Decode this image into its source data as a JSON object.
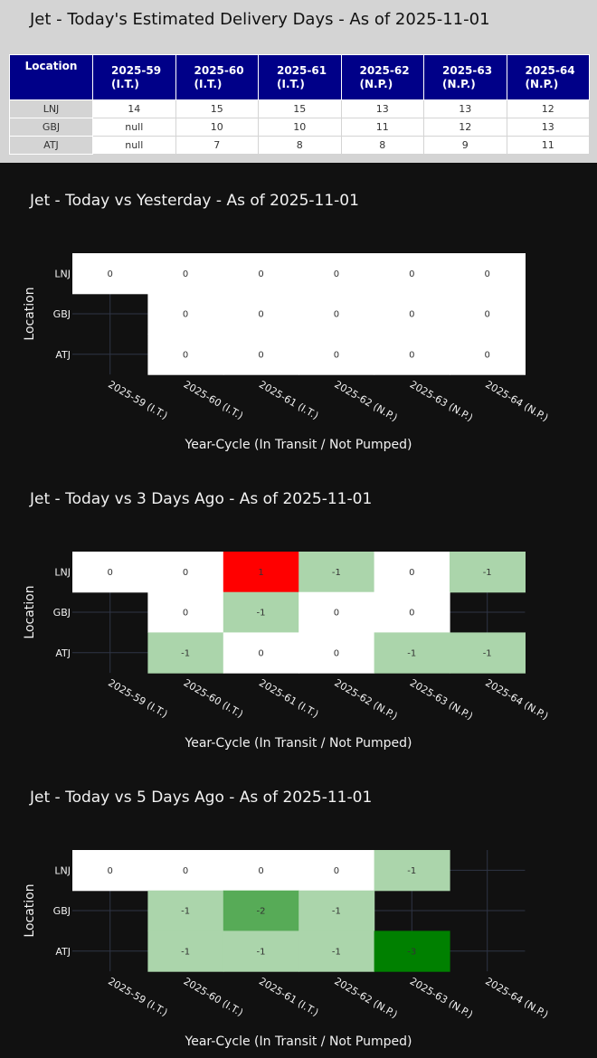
{
  "table": {
    "title": "Jet - Today's Estimated Delivery Days - As of 2025-11-01",
    "header_location": "Location",
    "columns": [
      [
        "2025-59",
        "(I.T.)"
      ],
      [
        "2025-60",
        "(I.T.)"
      ],
      [
        "2025-61",
        "(I.T.)"
      ],
      [
        "2025-62",
        "(N.P.)"
      ],
      [
        "2025-63",
        "(N.P.)"
      ],
      [
        "2025-64",
        "(N.P.)"
      ]
    ],
    "rows": [
      {
        "location": "LNJ",
        "values": [
          "14",
          "15",
          "15",
          "13",
          "13",
          "12"
        ]
      },
      {
        "location": "GBJ",
        "values": [
          "null",
          "10",
          "10",
          "11",
          "12",
          "13"
        ]
      },
      {
        "location": "ATJ",
        "values": [
          "null",
          "7",
          "8",
          "8",
          "9",
          "11"
        ]
      }
    ],
    "colors": {
      "header_bg": "#000088",
      "header_text": "#ffffff"
    }
  },
  "chart_data": [
    {
      "type": "heatmap",
      "title": "Jet - Today vs Yesterday - As of 2025-11-01",
      "xlabel": "Year-Cycle (In Transit / Not Pumped)",
      "ylabel": "Location",
      "x": [
        "2025-59 (I.T.)",
        "2025-60 (I.T.)",
        "2025-61 (I.T.)",
        "2025-62 (N.P.)",
        "2025-63 (N.P.)",
        "2025-64 (N.P.)"
      ],
      "y": [
        "LNJ",
        "GBJ",
        "ATJ"
      ],
      "z": [
        [
          0,
          0,
          0,
          0,
          0,
          0
        ],
        [
          null,
          0,
          0,
          0,
          0,
          0
        ],
        [
          null,
          0,
          0,
          0,
          0,
          0
        ]
      ]
    },
    {
      "type": "heatmap",
      "title": "Jet - Today vs 3 Days Ago - As of 2025-11-01",
      "xlabel": "Year-Cycle (In Transit / Not Pumped)",
      "ylabel": "Location",
      "x": [
        "2025-59 (I.T.)",
        "2025-60 (I.T.)",
        "2025-61 (I.T.)",
        "2025-62 (N.P.)",
        "2025-63 (N.P.)",
        "2025-64 (N.P.)"
      ],
      "y": [
        "LNJ",
        "GBJ",
        "ATJ"
      ],
      "z": [
        [
          0,
          0,
          1,
          -1,
          0,
          -1
        ],
        [
          null,
          0,
          -1,
          0,
          0,
          null
        ],
        [
          null,
          -1,
          0,
          0,
          -1,
          -1
        ]
      ]
    },
    {
      "type": "heatmap",
      "title": "Jet - Today vs 5 Days Ago - As of 2025-11-01",
      "xlabel": "Year-Cycle (In Transit / Not Pumped)",
      "ylabel": "Location",
      "x": [
        "2025-59 (I.T.)",
        "2025-60 (I.T.)",
        "2025-61 (I.T.)",
        "2025-62 (N.P.)",
        "2025-63 (N.P.)",
        "2025-64 (N.P.)"
      ],
      "y": [
        "LNJ",
        "GBJ",
        "ATJ"
      ],
      "z": [
        [
          0,
          0,
          0,
          0,
          -1,
          null
        ],
        [
          null,
          -1,
          -2,
          -1,
          null,
          null
        ],
        [
          null,
          -1,
          -1,
          -1,
          -3,
          null
        ]
      ]
    }
  ],
  "colors": {
    "page_bg": "#111111",
    "zero": "#ffffff",
    "positive": "#ff0000",
    "neg_strong": "#008000",
    "neg_mid": "#57ab57",
    "neg_light": "#abd5ab",
    "grid": "#2f3545"
  }
}
